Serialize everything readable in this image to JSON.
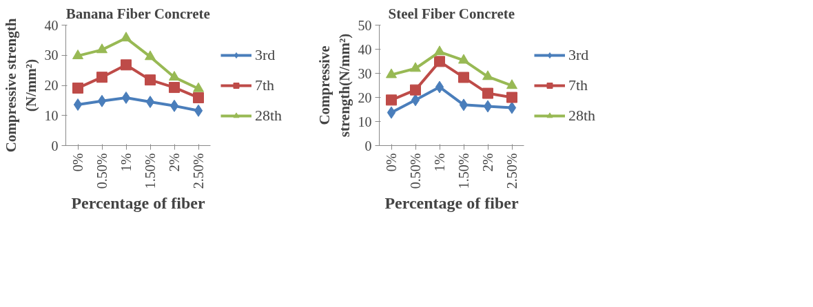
{
  "chart_data": [
    {
      "type": "line",
      "title": "Banana Fiber Concrete",
      "xlabel": "Percentage of fiber",
      "ylabel": "Compressive strength (N/mm²)",
      "categories": [
        "0%",
        "0.50%",
        "1%",
        "1.50%",
        "2%",
        "2.50%"
      ],
      "ylim": [
        0,
        40
      ],
      "yticks": [
        0,
        10,
        20,
        30,
        40
      ],
      "grid": false,
      "legend": "right",
      "series": [
        {
          "name": "3rd",
          "color": "#4a7ebb",
          "marker": "diamond",
          "values": [
            13.6,
            14.8,
            15.9,
            14.5,
            13.2,
            11.6
          ]
        },
        {
          "name": "7th",
          "color": "#be4b48",
          "marker": "square",
          "values": [
            19.1,
            22.7,
            26.8,
            21.8,
            19.3,
            15.9
          ]
        },
        {
          "name": "28th",
          "color": "#98b954",
          "marker": "triangle",
          "values": [
            29.8,
            31.8,
            35.7,
            29.5,
            22.7,
            18.9
          ]
        }
      ]
    },
    {
      "type": "line",
      "title": "Steel Fiber Concrete",
      "xlabel": "Percentage of fiber",
      "ylabel": "Compressive strength(N/mm²)",
      "categories": [
        "0%",
        "0.50%",
        "1%",
        "1.50%",
        "2%",
        "2.50%"
      ],
      "ylim": [
        0,
        50
      ],
      "yticks": [
        0,
        10,
        20,
        30,
        40,
        50
      ],
      "grid": false,
      "legend": "right",
      "series": [
        {
          "name": "3rd",
          "color": "#4a7ebb",
          "marker": "diamond",
          "values": [
            13.7,
            18.9,
            24.3,
            16.9,
            16.3,
            15.7
          ]
        },
        {
          "name": "7th",
          "color": "#be4b48",
          "marker": "square",
          "values": [
            18.9,
            23.1,
            34.9,
            28.3,
            21.7,
            20.0
          ]
        },
        {
          "name": "28th",
          "color": "#98b954",
          "marker": "triangle",
          "values": [
            29.4,
            32.0,
            38.9,
            35.4,
            28.6,
            24.9
          ]
        }
      ]
    }
  ]
}
